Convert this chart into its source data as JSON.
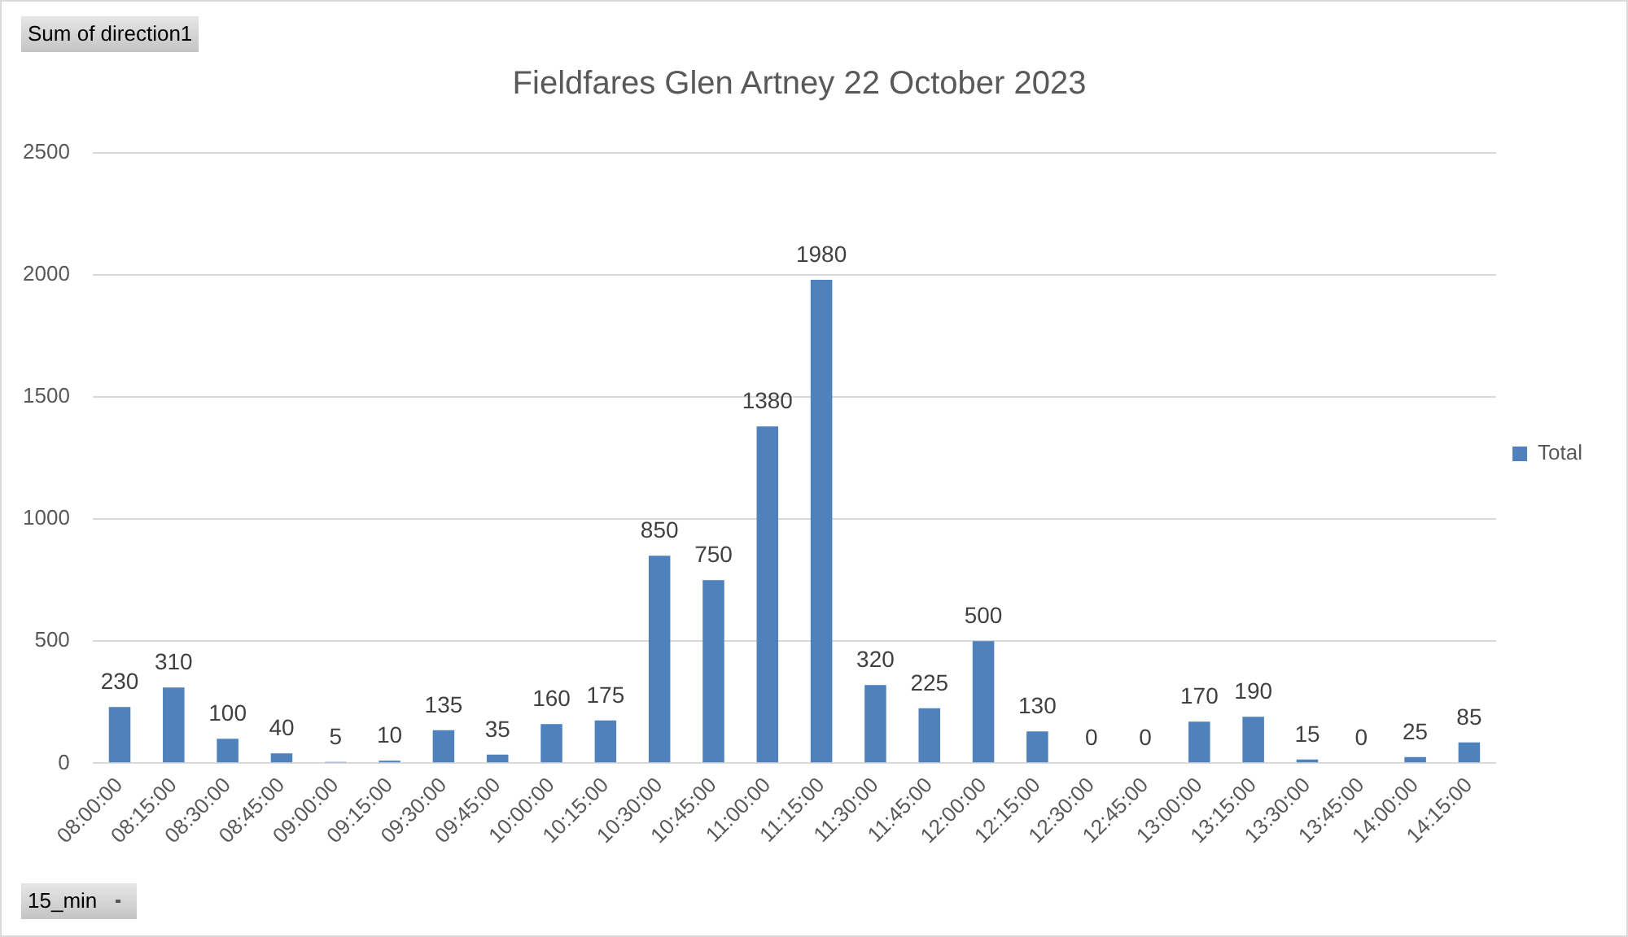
{
  "chart_data": {
    "type": "bar",
    "title": "Fieldfares Glen Artney 22 October 2023",
    "categories": [
      "08:00:00",
      "08:15:00",
      "08:30:00",
      "08:45:00",
      "09:00:00",
      "09:15:00",
      "09:30:00",
      "09:45:00",
      "10:00:00",
      "10:15:00",
      "10:30:00",
      "10:45:00",
      "11:00:00",
      "11:15:00",
      "11:30:00",
      "11:45:00",
      "12:00:00",
      "12:15:00",
      "12:30:00",
      "12:45:00",
      "13:00:00",
      "13:15:00",
      "13:30:00",
      "13:45:00",
      "14:00:00",
      "14:15:00"
    ],
    "series": [
      {
        "name": "Total",
        "color": "#4f81bd",
        "values": [
          230,
          310,
          100,
          40,
          5,
          10,
          135,
          35,
          160,
          175,
          850,
          750,
          1380,
          1980,
          320,
          225,
          500,
          130,
          0,
          0,
          170,
          190,
          15,
          0,
          25,
          85
        ]
      }
    ],
    "ylim": [
      0,
      2500
    ],
    "yticks": [
      0,
      500,
      1000,
      1500,
      2000,
      2500
    ],
    "grid": "y",
    "legend": "right",
    "data_labels": true,
    "annotations": [
      "Sum of direction1",
      "15_min"
    ]
  }
}
